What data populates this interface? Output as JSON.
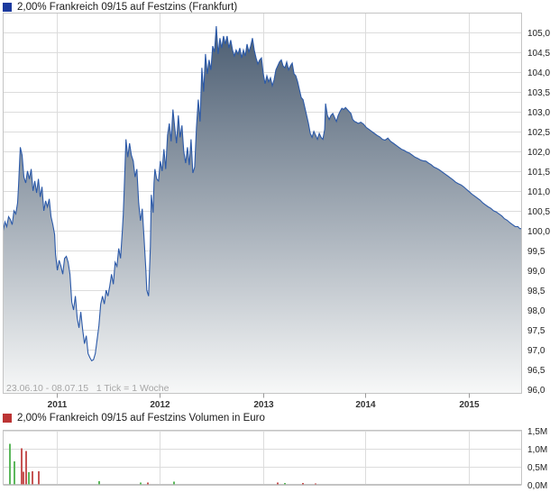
{
  "price_chart": {
    "title": "2,00% Frankreich 09/15 auf Festzins (Frankfurt)",
    "legend_color": "#1b3a9e",
    "range_note": "23.06.10 - 08.07.15   1 Tick = 1 Woche"
  },
  "volume_chart": {
    "title": "2,00% Frankreich 09/15 auf Festzins Volumen in Euro",
    "legend_color": "#bc3434"
  },
  "chart_data": [
    {
      "type": "area",
      "title": "2,00% Frankreich 09/15 auf Festzins (Frankfurt)",
      "x_range_label": "23.06.10 - 08.07.15",
      "tick_note": "1 Tick = 1 Woche",
      "ylim": [
        95.9,
        105.48
      ],
      "y_tick_min": 96.0,
      "y_tick_max": 105.0,
      "y_tick_step": 0.5,
      "x_ticks": [
        {
          "label": "2011",
          "f": 0.1042
        },
        {
          "label": "2012",
          "f": 0.3026
        },
        {
          "label": "2013",
          "f": 0.5011
        },
        {
          "label": "2014",
          "f": 0.699
        },
        {
          "label": "2015",
          "f": 0.8975
        }
      ],
      "line_color": "#2b59a8",
      "fill_top_color": "#4a5c71",
      "fill_bottom_color": "#f7f8f8",
      "x_domain": [
        0,
        574
      ],
      "points": [
        [
          0,
          100.0
        ],
        [
          2,
          100.22
        ],
        [
          4,
          100.1
        ],
        [
          6,
          100.35
        ],
        [
          8,
          100.28
        ],
        [
          10,
          100.15
        ],
        [
          12,
          100.5
        ],
        [
          14,
          100.42
        ],
        [
          16,
          100.7
        ],
        [
          17,
          101.1
        ],
        [
          19,
          102.1
        ],
        [
          21,
          101.9
        ],
        [
          23,
          101.35
        ],
        [
          25,
          101.2
        ],
        [
          27,
          101.5
        ],
        [
          29,
          101.3
        ],
        [
          31,
          101.55
        ],
        [
          33,
          101.0
        ],
        [
          35,
          101.25
        ],
        [
          37,
          100.95
        ],
        [
          39,
          101.3
        ],
        [
          41,
          100.85
        ],
        [
          43,
          101.1
        ],
        [
          45,
          100.5
        ],
        [
          47,
          100.75
        ],
        [
          49,
          100.6
        ],
        [
          51,
          100.8
        ],
        [
          53,
          100.35
        ],
        [
          55,
          100.15
        ],
        [
          57,
          99.9
        ],
        [
          58,
          99.4
        ],
        [
          60,
          99.0
        ],
        [
          62,
          99.25
        ],
        [
          64,
          99.1
        ],
        [
          66,
          98.9
        ],
        [
          68,
          99.3
        ],
        [
          70,
          99.35
        ],
        [
          72,
          99.2
        ],
        [
          74,
          98.9
        ],
        [
          76,
          98.2
        ],
        [
          78,
          98.0
        ],
        [
          80,
          98.35
        ],
        [
          82,
          97.8
        ],
        [
          84,
          97.55
        ],
        [
          86,
          97.95
        ],
        [
          88,
          97.5
        ],
        [
          90,
          97.15
        ],
        [
          92,
          97.35
        ],
        [
          94,
          96.9
        ],
        [
          96,
          96.8
        ],
        [
          98,
          96.72
        ],
        [
          100,
          96.75
        ],
        [
          102,
          96.9
        ],
        [
          104,
          97.25
        ],
        [
          106,
          97.6
        ],
        [
          108,
          98.15
        ],
        [
          110,
          98.35
        ],
        [
          112,
          98.15
        ],
        [
          114,
          98.5
        ],
        [
          116,
          98.35
        ],
        [
          118,
          98.6
        ],
        [
          120,
          98.9
        ],
        [
          122,
          98.65
        ],
        [
          124,
          99.2
        ],
        [
          126,
          99.1
        ],
        [
          128,
          99.55
        ],
        [
          130,
          99.3
        ],
        [
          132,
          100.0
        ],
        [
          133,
          100.4
        ],
        [
          134,
          101.0
        ],
        [
          136,
          102.3
        ],
        [
          138,
          101.85
        ],
        [
          140,
          102.2
        ],
        [
          142,
          101.9
        ],
        [
          144,
          101.75
        ],
        [
          146,
          101.35
        ],
        [
          148,
          101.55
        ],
        [
          150,
          100.7
        ],
        [
          152,
          100.25
        ],
        [
          154,
          100.55
        ],
        [
          156,
          99.8
        ],
        [
          158,
          99.0
        ],
        [
          159,
          98.5
        ],
        [
          161,
          98.35
        ],
        [
          163,
          99.6
        ],
        [
          164,
          100.9
        ],
        [
          166,
          100.45
        ],
        [
          167,
          101.2
        ],
        [
          168,
          101.55
        ],
        [
          170,
          101.3
        ],
        [
          172,
          101.25
        ],
        [
          174,
          101.75
        ],
        [
          176,
          101.5
        ],
        [
          178,
          102.05
        ],
        [
          180,
          101.55
        ],
        [
          182,
          102.4
        ],
        [
          184,
          102.7
        ],
        [
          186,
          102.25
        ],
        [
          188,
          103.05
        ],
        [
          190,
          102.6
        ],
        [
          192,
          102.2
        ],
        [
          194,
          102.9
        ],
        [
          196,
          102.35
        ],
        [
          198,
          102.65
        ],
        [
          200,
          102.0
        ],
        [
          202,
          101.7
        ],
        [
          204,
          102.1
        ],
        [
          206,
          101.65
        ],
        [
          208,
          102.3
        ],
        [
          210,
          101.45
        ],
        [
          212,
          101.6
        ],
        [
          214,
          102.6
        ],
        [
          216,
          103.3
        ],
        [
          218,
          102.75
        ],
        [
          220,
          104.1
        ],
        [
          222,
          103.5
        ],
        [
          224,
          104.45
        ],
        [
          226,
          103.95
        ],
        [
          228,
          104.3
        ],
        [
          230,
          104.05
        ],
        [
          232,
          104.65
        ],
        [
          234,
          104.5
        ],
        [
          236,
          105.15
        ],
        [
          238,
          104.45
        ],
        [
          240,
          104.85
        ],
        [
          242,
          104.6
        ],
        [
          244,
          104.9
        ],
        [
          246,
          104.7
        ],
        [
          248,
          104.9
        ],
        [
          250,
          104.6
        ],
        [
          252,
          104.8
        ],
        [
          254,
          104.55
        ],
        [
          256,
          104.4
        ],
        [
          258,
          104.55
        ],
        [
          260,
          104.45
        ],
        [
          262,
          104.6
        ],
        [
          264,
          104.35
        ],
        [
          266,
          104.55
        ],
        [
          268,
          104.4
        ],
        [
          270,
          104.7
        ],
        [
          272,
          104.5
        ],
        [
          274,
          104.65
        ],
        [
          276,
          104.85
        ],
        [
          278,
          104.55
        ],
        [
          280,
          104.35
        ],
        [
          282,
          104.2
        ],
        [
          284,
          104.3
        ],
        [
          286,
          104.35
        ],
        [
          288,
          103.95
        ],
        [
          290,
          103.7
        ],
        [
          292,
          103.9
        ],
        [
          294,
          103.75
        ],
        [
          296,
          103.85
        ],
        [
          298,
          103.65
        ],
        [
          300,
          103.8
        ],
        [
          302,
          104.05
        ],
        [
          304,
          104.15
        ],
        [
          306,
          104.25
        ],
        [
          308,
          104.3
        ],
        [
          310,
          104.15
        ],
        [
          312,
          104.1
        ],
        [
          314,
          104.25
        ],
        [
          316,
          104.05
        ],
        [
          318,
          104.15
        ],
        [
          320,
          104.22
        ],
        [
          322,
          103.95
        ],
        [
          324,
          103.9
        ],
        [
          326,
          103.75
        ],
        [
          328,
          103.55
        ],
        [
          330,
          103.35
        ],
        [
          332,
          103.3
        ],
        [
          334,
          103.1
        ],
        [
          336,
          102.9
        ],
        [
          338,
          102.7
        ],
        [
          340,
          102.45
        ],
        [
          342,
          102.35
        ],
        [
          344,
          102.5
        ],
        [
          346,
          102.4
        ],
        [
          348,
          102.3
        ],
        [
          350,
          102.45
        ],
        [
          352,
          102.35
        ],
        [
          354,
          102.3
        ],
        [
          356,
          102.55
        ],
        [
          357,
          103.2
        ],
        [
          359,
          102.9
        ],
        [
          361,
          102.8
        ],
        [
          363,
          102.9
        ],
        [
          365,
          102.95
        ],
        [
          367,
          102.85
        ],
        [
          369,
          102.75
        ],
        [
          371,
          102.9
        ],
        [
          373,
          103.0
        ],
        [
          375,
          103.08
        ],
        [
          377,
          103.05
        ],
        [
          379,
          103.1
        ],
        [
          381,
          103.05
        ],
        [
          383,
          103.0
        ],
        [
          385,
          102.95
        ],
        [
          387,
          102.8
        ],
        [
          389,
          102.75
        ],
        [
          391,
          102.73
        ],
        [
          393,
          102.7
        ],
        [
          396,
          102.73
        ],
        [
          399,
          102.68
        ],
        [
          402,
          102.6
        ],
        [
          405,
          102.55
        ],
        [
          408,
          102.5
        ],
        [
          411,
          102.45
        ],
        [
          414,
          102.4
        ],
        [
          417,
          102.36
        ],
        [
          420,
          102.3
        ],
        [
          423,
          102.28
        ],
        [
          426,
          102.33
        ],
        [
          429,
          102.25
        ],
        [
          432,
          102.2
        ],
        [
          435,
          102.15
        ],
        [
          438,
          102.1
        ],
        [
          441,
          102.05
        ],
        [
          444,
          102.02
        ],
        [
          447,
          101.98
        ],
        [
          450,
          101.95
        ],
        [
          453,
          101.9
        ],
        [
          456,
          101.85
        ],
        [
          459,
          101.82
        ],
        [
          462,
          101.78
        ],
        [
          465,
          101.76
        ],
        [
          468,
          101.75
        ],
        [
          471,
          101.7
        ],
        [
          474,
          101.66
        ],
        [
          477,
          101.6
        ],
        [
          480,
          101.57
        ],
        [
          483,
          101.53
        ],
        [
          486,
          101.48
        ],
        [
          489,
          101.43
        ],
        [
          492,
          101.38
        ],
        [
          495,
          101.33
        ],
        [
          498,
          101.28
        ],
        [
          501,
          101.22
        ],
        [
          504,
          101.18
        ],
        [
          507,
          101.15
        ],
        [
          510,
          101.1
        ],
        [
          513,
          101.04
        ],
        [
          516,
          100.98
        ],
        [
          519,
          100.92
        ],
        [
          522,
          100.87
        ],
        [
          525,
          100.82
        ],
        [
          528,
          100.77
        ],
        [
          531,
          100.7
        ],
        [
          534,
          100.65
        ],
        [
          537,
          100.6
        ],
        [
          540,
          100.56
        ],
        [
          543,
          100.5
        ],
        [
          546,
          100.47
        ],
        [
          549,
          100.42
        ],
        [
          552,
          100.37
        ],
        [
          555,
          100.3
        ],
        [
          558,
          100.26
        ],
        [
          561,
          100.2
        ],
        [
          564,
          100.15
        ],
        [
          567,
          100.1
        ],
        [
          570,
          100.1
        ],
        [
          572,
          100.05
        ],
        [
          574,
          100.05
        ]
      ]
    },
    {
      "type": "bar",
      "title": "2,00% Frankreich 09/15 auf Festzins Volumen in Euro",
      "ylim": [
        0,
        1.5
      ],
      "y_tick_step": 0.5,
      "y_unit": "M",
      "up_color": "#5cb85c",
      "down_color": "#c75454",
      "x_domain": [
        0,
        574
      ],
      "bars": [
        [
          7,
          1.12,
          "up"
        ],
        [
          12,
          0.64,
          "up"
        ],
        [
          20,
          1.0,
          "down"
        ],
        [
          22,
          0.35,
          "down"
        ],
        [
          25,
          0.92,
          "down"
        ],
        [
          28,
          0.34,
          "up"
        ],
        [
          32,
          0.36,
          "down"
        ],
        [
          39,
          0.36,
          "down"
        ],
        [
          106,
          0.09,
          "up"
        ],
        [
          152,
          0.05,
          "up"
        ],
        [
          160,
          0.05,
          "down"
        ],
        [
          189,
          0.07,
          "up"
        ],
        [
          304,
          0.05,
          "down"
        ],
        [
          312,
          0.04,
          "up"
        ],
        [
          332,
          0.04,
          "down"
        ],
        [
          346,
          0.03,
          "down"
        ]
      ]
    }
  ]
}
